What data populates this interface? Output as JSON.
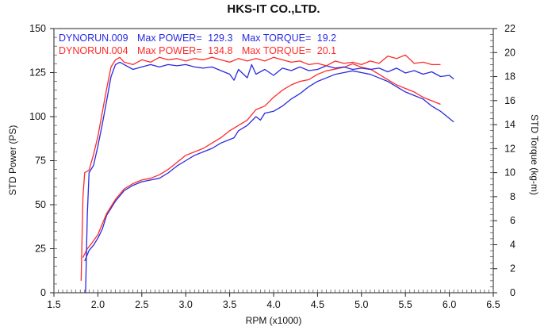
{
  "chart_data": {
    "type": "line",
    "title": "HKS-IT CO.,LTD.",
    "xlabel": "RPM (x1000)",
    "ylabel_left": "STD Power (PS)",
    "ylabel_right": "STD Torque (kg-m)",
    "xlim": [
      1.5,
      6.5
    ],
    "ylim_left": [
      0,
      150
    ],
    "ylim_right": [
      0,
      22
    ],
    "x_ticks": [
      "1.5",
      "2.0",
      "2.5",
      "3.0",
      "3.5",
      "4.0",
      "4.5",
      "5.0",
      "5.5",
      "6.0",
      "6.5"
    ],
    "y_left_ticks": [
      "0",
      "25",
      "50",
      "75",
      "100",
      "125",
      "150"
    ],
    "y_right_ticks": [
      "0",
      "2",
      "4",
      "6",
      "8",
      "10",
      "12",
      "14",
      "16",
      "18",
      "20",
      "22"
    ],
    "grid": false,
    "legend_position": "top-left",
    "legend": [
      {
        "run": "DYNORUN.009",
        "power_label": "Max POWER=",
        "power": "129.3",
        "torque_label": "Max TORQUE=",
        "torque": "19.2",
        "color": "#2a2ae0"
      },
      {
        "run": "DYNORUN.004",
        "power_label": "Max POWER=",
        "power": "134.8",
        "torque_label": "Max TORQUE=",
        "torque": "20.1",
        "color": "#ff2a2a"
      }
    ],
    "series": [
      {
        "run": "DYNORUN.009",
        "quantity": "power",
        "axis": "left",
        "color": "#2a2ae0",
        "x": [
          1.85,
          1.9,
          1.95,
          2.0,
          2.05,
          2.1,
          2.2,
          2.3,
          2.4,
          2.5,
          2.6,
          2.7,
          2.8,
          2.9,
          3.0,
          3.1,
          3.2,
          3.3,
          3.4,
          3.5,
          3.55,
          3.6,
          3.7,
          3.8,
          3.85,
          3.9,
          4.0,
          4.1,
          4.2,
          4.3,
          4.4,
          4.5,
          4.6,
          4.7,
          4.8,
          4.9,
          5.0,
          5.1,
          5.2,
          5.3,
          5.4,
          5.5,
          5.6,
          5.7,
          5.8,
          5.9,
          6.0,
          6.05
        ],
        "y": [
          18,
          24,
          27,
          31,
          36,
          44,
          52,
          58,
          61,
          63,
          64,
          65,
          68,
          72,
          75,
          78,
          80,
          82,
          85,
          87,
          88,
          92,
          95,
          100,
          98,
          102,
          103,
          106,
          110,
          113,
          117,
          120,
          122,
          124,
          125,
          126,
          125,
          124,
          122,
          120,
          117,
          114,
          112,
          110,
          106,
          103,
          99,
          97
        ]
      },
      {
        "run": "DYNORUN.004",
        "quantity": "power",
        "axis": "left",
        "color": "#ff2a2a",
        "x": [
          1.83,
          1.88,
          1.93,
          2.0,
          2.05,
          2.1,
          2.2,
          2.3,
          2.4,
          2.5,
          2.6,
          2.7,
          2.8,
          2.9,
          3.0,
          3.1,
          3.2,
          3.3,
          3.4,
          3.5,
          3.6,
          3.7,
          3.75,
          3.8,
          3.9,
          4.0,
          4.1,
          4.2,
          4.3,
          4.4,
          4.5,
          4.6,
          4.7,
          4.8,
          4.9,
          5.0,
          5.1,
          5.2,
          5.3,
          5.4,
          5.5,
          5.6,
          5.7,
          5.8,
          5.9
        ],
        "y": [
          20,
          25,
          28,
          33,
          39,
          45,
          53,
          59,
          62,
          64,
          65,
          67,
          70,
          74,
          78,
          80,
          82,
          85,
          88,
          92,
          95,
          98,
          101,
          104,
          106,
          111,
          115,
          118,
          120,
          121,
          124,
          126,
          127,
          128,
          130,
          128,
          127,
          124,
          121,
          118,
          116,
          114,
          111,
          109,
          107
        ]
      },
      {
        "run": "DYNORUN.009",
        "quantity": "torque",
        "axis": "right",
        "color": "#2a2ae0",
        "x": [
          1.86,
          1.88,
          1.9,
          1.95,
          2.0,
          2.05,
          2.1,
          2.15,
          2.2,
          2.25,
          2.3,
          2.4,
          2.5,
          2.6,
          2.7,
          2.8,
          2.9,
          3.0,
          3.1,
          3.2,
          3.3,
          3.4,
          3.5,
          3.55,
          3.6,
          3.7,
          3.75,
          3.8,
          3.9,
          4.0,
          4.1,
          4.2,
          4.3,
          4.4,
          4.5,
          4.6,
          4.7,
          4.8,
          4.9,
          5.0,
          5.1,
          5.2,
          5.3,
          5.4,
          5.5,
          5.6,
          5.7,
          5.8,
          5.9,
          6.0,
          6.05
        ],
        "y": [
          0.0,
          6.5,
          10.0,
          10.6,
          12.2,
          14.0,
          16.0,
          18.0,
          19.0,
          19.2,
          19.0,
          18.6,
          18.8,
          19.0,
          18.8,
          19.0,
          18.9,
          19.0,
          18.8,
          18.7,
          18.8,
          18.5,
          18.2,
          17.7,
          18.6,
          17.9,
          19.0,
          18.2,
          18.6,
          18.1,
          18.7,
          18.5,
          18.8,
          18.5,
          18.6,
          18.9,
          18.7,
          18.8,
          18.6,
          18.7,
          18.6,
          18.7,
          18.4,
          18.7,
          18.3,
          18.5,
          18.2,
          18.4,
          18.0,
          18.1,
          17.8
        ]
      },
      {
        "run": "DYNORUN.004",
        "quantity": "torque",
        "axis": "right",
        "color": "#ff2a2a",
        "x": [
          1.81,
          1.83,
          1.85,
          1.9,
          1.95,
          2.0,
          2.05,
          2.1,
          2.15,
          2.2,
          2.25,
          2.3,
          2.4,
          2.5,
          2.6,
          2.7,
          2.8,
          2.9,
          3.0,
          3.1,
          3.2,
          3.3,
          3.4,
          3.5,
          3.6,
          3.7,
          3.8,
          3.9,
          4.0,
          4.1,
          4.2,
          4.3,
          4.4,
          4.5,
          4.6,
          4.7,
          4.8,
          4.9,
          5.0,
          5.1,
          5.2,
          5.3,
          5.4,
          5.5,
          5.6,
          5.7,
          5.8,
          5.9
        ],
        "y": [
          1.0,
          8.0,
          10.0,
          10.2,
          11.5,
          13.0,
          15.0,
          17.0,
          18.8,
          19.4,
          19.6,
          19.2,
          19.0,
          19.4,
          19.2,
          19.6,
          19.4,
          19.5,
          19.3,
          19.5,
          19.4,
          19.6,
          19.4,
          19.2,
          19.5,
          19.3,
          19.5,
          19.3,
          19.6,
          19.4,
          19.2,
          19.3,
          19.0,
          19.1,
          18.9,
          19.3,
          19.1,
          19.2,
          19.0,
          19.3,
          19.1,
          19.7,
          19.5,
          19.8,
          19.1,
          19.2,
          19.0,
          19.0
        ]
      }
    ]
  }
}
